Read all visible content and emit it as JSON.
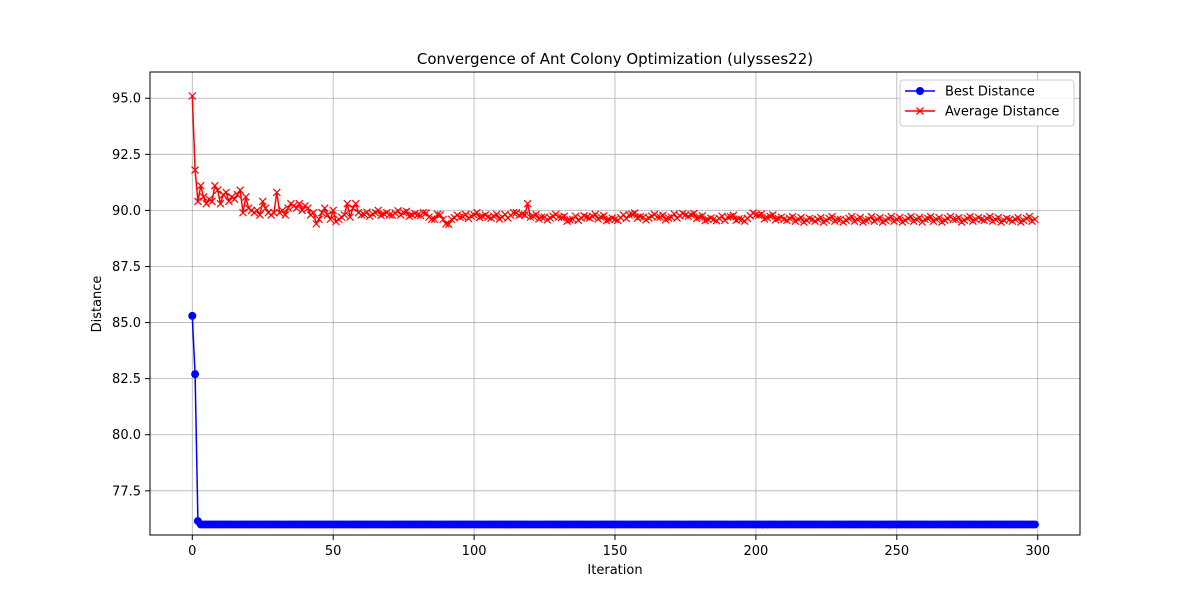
{
  "chart_data": {
    "type": "line",
    "title": "Convergence of Ant Colony Optimization (ulysses22)",
    "xlabel": "Iteration",
    "ylabel": "Distance",
    "xlim": [
      -15,
      315
    ],
    "ylim": [
      75.53,
      96.17
    ],
    "xticks": [
      0,
      50,
      100,
      150,
      200,
      250,
      300
    ],
    "xtick_labels": [
      "0",
      "50",
      "100",
      "150",
      "200",
      "250",
      "300"
    ],
    "yticks": [
      77.5,
      80.0,
      82.5,
      85.0,
      87.5,
      90.0,
      92.5,
      95.0
    ],
    "ytick_labels": [
      "77.5",
      "80.0",
      "82.5",
      "85.0",
      "87.5",
      "90.0",
      "92.5",
      "95.0"
    ],
    "grid": true,
    "legend": "upper-right",
    "series": [
      {
        "name": "Best Distance",
        "color": "#0000ff",
        "marker": "circle",
        "x": [
          0,
          1,
          2,
          3,
          4
        ],
        "y": [
          85.3,
          82.7,
          76.15,
          76.0,
          76.0
        ],
        "tail_from": 4,
        "tail_to": 299,
        "tail_value": 76.0
      },
      {
        "name": "Average Distance",
        "color": "#ff0000",
        "marker": "x",
        "x": [
          0,
          1,
          2,
          3,
          4,
          5,
          6,
          7,
          8,
          9,
          10,
          11,
          12,
          13,
          14,
          15,
          16,
          17,
          18,
          19,
          20,
          21,
          22,
          23,
          24,
          25,
          26,
          27,
          28,
          29,
          30,
          31,
          32,
          33,
          34,
          35,
          36,
          37,
          38,
          39,
          40,
          41,
          42,
          43,
          44,
          45,
          46,
          47,
          48,
          49,
          50,
          51,
          52,
          53,
          54,
          55,
          56,
          57,
          58,
          59,
          60,
          65,
          70,
          75,
          80,
          82,
          84,
          86,
          88,
          90,
          92,
          95,
          100,
          105,
          110,
          115,
          118,
          119,
          120,
          125,
          130,
          135,
          140,
          145,
          150,
          155,
          160,
          165,
          170,
          175,
          180,
          185,
          190,
          195,
          200,
          210,
          220,
          230,
          240,
          250,
          260,
          270,
          280,
          290,
          299
        ],
        "y": [
          95.1,
          91.8,
          90.4,
          91.1,
          90.6,
          90.3,
          90.5,
          90.4,
          91.1,
          90.9,
          90.3,
          90.7,
          90.8,
          90.4,
          90.6,
          90.5,
          90.7,
          90.9,
          89.9,
          90.6,
          90.1,
          90.0,
          89.9,
          90.0,
          89.8,
          90.4,
          90.1,
          89.9,
          89.8,
          89.9,
          90.8,
          89.9,
          90.0,
          89.8,
          90.1,
          90.3,
          90.2,
          90.1,
          90.3,
          90.0,
          90.2,
          90.1,
          89.8,
          89.9,
          89.4,
          89.6,
          89.9,
          90.1,
          89.8,
          89.6,
          90.0,
          89.5,
          89.6,
          89.7,
          89.8,
          90.3,
          89.7,
          90.1,
          90.3,
          89.9,
          89.8,
          89.9,
          89.8,
          89.9,
          89.8,
          89.9,
          89.7,
          89.6,
          89.8,
          89.4,
          89.6,
          89.7,
          89.8,
          89.7,
          89.7,
          89.9,
          89.8,
          90.3,
          89.7,
          89.7,
          89.7,
          89.6,
          89.7,
          89.7,
          89.6,
          89.8,
          89.7,
          89.7,
          89.7,
          89.8,
          89.7,
          89.6,
          89.7,
          89.6,
          89.8,
          89.6,
          89.6,
          89.6,
          89.6,
          89.6,
          89.6,
          89.6,
          89.6,
          89.6,
          89.6
        ]
      }
    ]
  }
}
